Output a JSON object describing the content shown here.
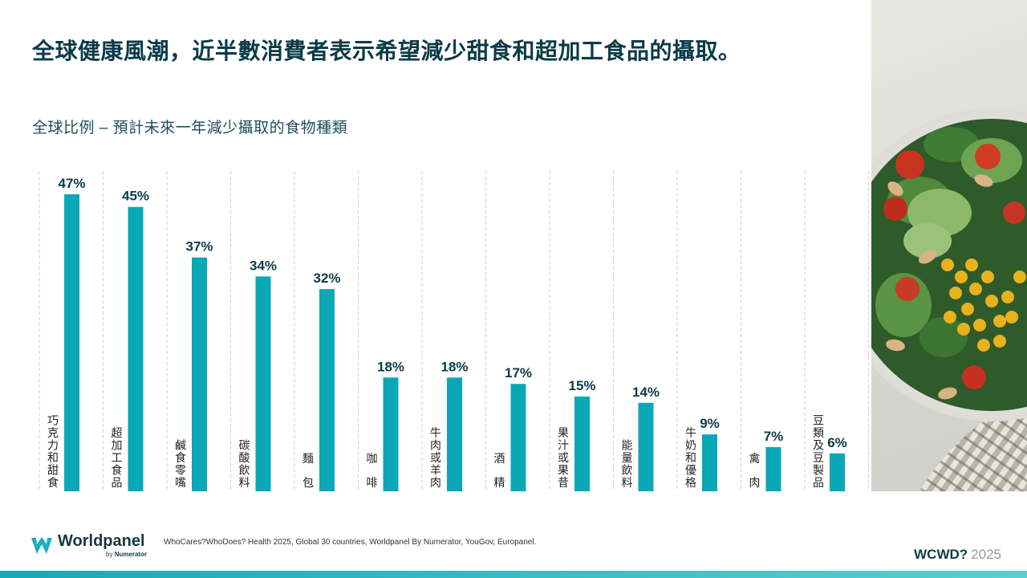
{
  "slide": {
    "title": "全球健康風潮，近半數消費者表示希望減少甜食和超加工食品的攝取。",
    "subtitle": "全球比例 – 預計未來一年減少攝取的食物種類"
  },
  "chart_data": {
    "type": "bar",
    "title": "全球比例 – 預計未來一年減少攝取的食物種類",
    "categories": [
      "巧克力和甜食",
      "超加工食品",
      "鹹食零嘴",
      "碳酸飲料",
      "麵包",
      "咖啡",
      "牛肉或羊肉",
      "酒精",
      "果汁或果昔",
      "能量飲料",
      "牛奶和優格",
      "禽肉",
      "豆類及豆製品"
    ],
    "values": [
      47,
      45,
      37,
      34,
      32,
      18,
      18,
      17,
      15,
      14,
      9,
      7,
      6
    ],
    "value_labels": [
      "47%",
      "45%",
      "37%",
      "34%",
      "32%",
      "18%",
      "18%",
      "17%",
      "15%",
      "14%",
      "9%",
      "7%",
      "6%"
    ],
    "ylim": [
      0,
      50
    ],
    "grid": "dashed vertical separators",
    "bar_color": "#0aa8b6",
    "label_color": "#0b3b48"
  },
  "footer": {
    "logo_name": "Worldpanel",
    "logo_by": "by",
    "logo_by_brand": "Numerator",
    "source": "WhoCares?WhoDoes? Health 2025, Global 30 countries, Worldpanel By Numerator, YouGov, Europanel.",
    "brand": "WCWD?",
    "year": "2025"
  },
  "colors": {
    "accent": "#0aa8b6",
    "title": "#0b3b48"
  }
}
